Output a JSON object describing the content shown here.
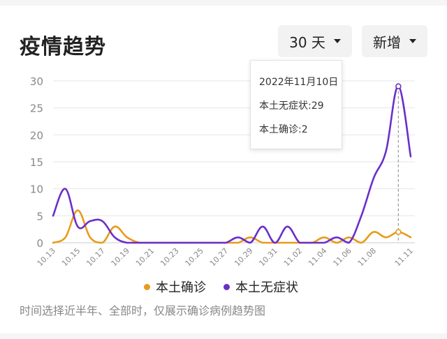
{
  "header": {
    "title": "疫情趋势",
    "range_label": "30 天",
    "metric_label": "新增"
  },
  "tooltip": {
    "date": "2022年11月10日",
    "line1": "本土无症状:29",
    "line2": "本土确诊:2"
  },
  "legend": {
    "item1": "本土确诊",
    "item2": "本土无症状"
  },
  "footnote": "时间选择近半年、全部时，仅展示确诊病例趋势图",
  "colors": {
    "confirmed": "#e89b1a",
    "asymptomatic": "#6a2fc9",
    "grid": "#e6e6e6",
    "axis_text": "#888888"
  },
  "chart_data": {
    "type": "line",
    "categories": [
      "10.13",
      "10.14",
      "10.15",
      "10.16",
      "10.17",
      "10.18",
      "10.19",
      "10.20",
      "10.21",
      "10.22",
      "10.23",
      "10.24",
      "10.25",
      "10.26",
      "10.27",
      "10.28",
      "10.29",
      "10.30",
      "10.31",
      "11.01",
      "11.02",
      "11.03",
      "11.04",
      "11.05",
      "11.06",
      "11.07",
      "11.08",
      "11.09",
      "11.10",
      "11.11"
    ],
    "tick_labels": [
      "10.13",
      "10.15",
      "10.17",
      "10.19",
      "10.21",
      "10.23",
      "10.25",
      "10.27",
      "10.29",
      "10.31",
      "11.02",
      "11.04",
      "11.06",
      "11.08",
      "11.11"
    ],
    "yticks": [
      0,
      5,
      10,
      15,
      20,
      25,
      30
    ],
    "ylim": [
      0,
      30
    ],
    "series": [
      {
        "name": "本土确诊",
        "values": [
          0,
          1,
          6,
          1,
          0,
          3,
          1,
          0,
          0,
          0,
          0,
          0,
          0,
          0,
          0,
          0,
          1,
          0,
          0,
          0,
          0,
          0,
          1,
          0,
          1,
          0,
          2,
          1,
          2,
          1
        ]
      },
      {
        "name": "本土无症状",
        "values": [
          5,
          10,
          3,
          4,
          4,
          1,
          0,
          0,
          0,
          0,
          0,
          0,
          0,
          0,
          0,
          1,
          0,
          3,
          0,
          3,
          0,
          0,
          0,
          1,
          0,
          5,
          12,
          17,
          29,
          16
        ]
      }
    ],
    "highlight_index": 28
  }
}
